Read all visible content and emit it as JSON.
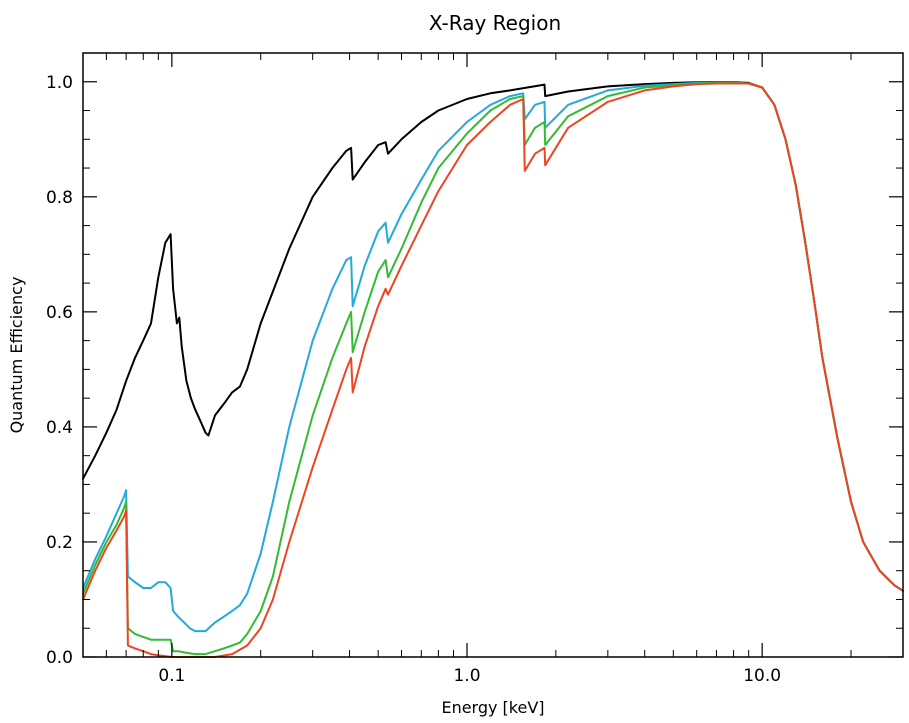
{
  "chart_data": {
    "type": "line",
    "title": "X-Ray Region",
    "xlabel": "Energy [keV]",
    "ylabel": "Quantum Efficiency",
    "xscale": "log",
    "xlim": [
      0.05,
      30
    ],
    "ylim": [
      0.0,
      1.05
    ],
    "grid": false,
    "legend": "none",
    "x_ticks": [
      {
        "value": 0.1,
        "label": "0.1"
      },
      {
        "value": 1.0,
        "label": "1.0"
      },
      {
        "value": 10.0,
        "label": "10.0"
      }
    ],
    "y_ticks": [
      {
        "value": 0.0,
        "label": "0.0"
      },
      {
        "value": 0.2,
        "label": "0.2"
      },
      {
        "value": 0.4,
        "label": "0.4"
      },
      {
        "value": 0.6,
        "label": "0.6"
      },
      {
        "value": 0.8,
        "label": "0.8"
      },
      {
        "value": 1.0,
        "label": "1.0"
      }
    ],
    "series": [
      {
        "color": "#000000",
        "x": [
          0.05,
          0.055,
          0.06,
          0.065,
          0.07,
          0.075,
          0.08,
          0.085,
          0.09,
          0.095,
          0.099,
          0.101,
          0.104,
          0.106,
          0.108,
          0.112,
          0.116,
          0.12,
          0.125,
          0.13,
          0.133,
          0.14,
          0.15,
          0.16,
          0.17,
          0.18,
          0.2,
          0.25,
          0.3,
          0.35,
          0.39,
          0.405,
          0.41,
          0.45,
          0.5,
          0.53,
          0.54,
          0.6,
          0.7,
          0.8,
          1.0,
          1.2,
          1.4,
          1.6,
          1.83,
          1.84,
          2.2,
          3.0,
          4.0,
          5.0,
          6.0,
          7.0,
          8.0,
          9.0,
          10.0,
          11.0,
          12.0,
          13.0,
          14.0,
          15.0,
          16.0,
          18.0,
          20.0,
          22.0,
          25.0,
          28.0,
          30.0
        ],
        "y": [
          0.31,
          0.35,
          0.39,
          0.43,
          0.48,
          0.52,
          0.55,
          0.58,
          0.66,
          0.72,
          0.735,
          0.64,
          0.58,
          0.59,
          0.54,
          0.48,
          0.45,
          0.43,
          0.41,
          0.39,
          0.385,
          0.42,
          0.44,
          0.46,
          0.47,
          0.5,
          0.58,
          0.71,
          0.8,
          0.85,
          0.88,
          0.885,
          0.83,
          0.86,
          0.89,
          0.895,
          0.875,
          0.9,
          0.93,
          0.95,
          0.97,
          0.98,
          0.985,
          0.99,
          0.995,
          0.975,
          0.983,
          0.992,
          0.996,
          0.998,
          0.999,
          0.999,
          0.999,
          0.998,
          0.99,
          0.96,
          0.9,
          0.82,
          0.72,
          0.62,
          0.52,
          0.38,
          0.27,
          0.2,
          0.15,
          0.125,
          0.115
        ]
      },
      {
        "color": "#22aadd",
        "x": [
          0.05,
          0.055,
          0.06,
          0.065,
          0.069,
          0.07,
          0.071,
          0.075,
          0.08,
          0.085,
          0.09,
          0.095,
          0.099,
          0.101,
          0.105,
          0.11,
          0.115,
          0.12,
          0.13,
          0.14,
          0.15,
          0.16,
          0.17,
          0.18,
          0.2,
          0.22,
          0.25,
          0.3,
          0.35,
          0.39,
          0.405,
          0.41,
          0.45,
          0.5,
          0.53,
          0.54,
          0.6,
          0.7,
          0.8,
          1.0,
          1.2,
          1.4,
          1.55,
          1.57,
          1.7,
          1.83,
          1.84,
          2.2,
          3.0,
          4.0,
          5.0,
          6.0,
          7.0,
          8.0,
          9.0,
          10.0,
          11.0,
          12.0,
          13.0,
          14.0,
          15.0,
          16.0,
          18.0,
          20.0,
          22.0,
          25.0,
          28.0,
          30.0
        ],
        "y": [
          0.12,
          0.17,
          0.21,
          0.25,
          0.28,
          0.29,
          0.14,
          0.13,
          0.12,
          0.12,
          0.13,
          0.13,
          0.12,
          0.08,
          0.07,
          0.06,
          0.05,
          0.045,
          0.045,
          0.06,
          0.07,
          0.08,
          0.09,
          0.11,
          0.18,
          0.27,
          0.4,
          0.55,
          0.64,
          0.69,
          0.695,
          0.61,
          0.68,
          0.74,
          0.755,
          0.72,
          0.77,
          0.83,
          0.88,
          0.93,
          0.96,
          0.975,
          0.98,
          0.935,
          0.96,
          0.965,
          0.92,
          0.96,
          0.985,
          0.993,
          0.996,
          0.998,
          0.998,
          0.998,
          0.997,
          0.99,
          0.96,
          0.9,
          0.82,
          0.72,
          0.62,
          0.52,
          0.38,
          0.27,
          0.2,
          0.15,
          0.125,
          0.115
        ]
      },
      {
        "color": "#33bb33",
        "x": [
          0.05,
          0.055,
          0.06,
          0.065,
          0.069,
          0.07,
          0.071,
          0.075,
          0.08,
          0.085,
          0.09,
          0.095,
          0.099,
          0.101,
          0.105,
          0.11,
          0.12,
          0.13,
          0.14,
          0.15,
          0.16,
          0.17,
          0.18,
          0.2,
          0.22,
          0.25,
          0.3,
          0.35,
          0.39,
          0.405,
          0.41,
          0.45,
          0.5,
          0.53,
          0.54,
          0.6,
          0.7,
          0.8,
          1.0,
          1.2,
          1.4,
          1.55,
          1.57,
          1.7,
          1.83,
          1.84,
          2.2,
          3.0,
          4.0,
          5.0,
          6.0,
          7.0,
          8.0,
          9.0,
          10.0,
          11.0,
          12.0,
          13.0,
          14.0,
          15.0,
          16.0,
          18.0,
          20.0,
          22.0,
          25.0,
          28.0,
          30.0
        ],
        "y": [
          0.11,
          0.16,
          0.2,
          0.23,
          0.26,
          0.27,
          0.05,
          0.04,
          0.035,
          0.03,
          0.03,
          0.03,
          0.03,
          0.01,
          0.01,
          0.008,
          0.005,
          0.005,
          0.01,
          0.015,
          0.02,
          0.025,
          0.04,
          0.08,
          0.14,
          0.27,
          0.42,
          0.52,
          0.58,
          0.6,
          0.53,
          0.6,
          0.67,
          0.69,
          0.66,
          0.71,
          0.79,
          0.85,
          0.91,
          0.95,
          0.97,
          0.975,
          0.89,
          0.92,
          0.93,
          0.89,
          0.94,
          0.975,
          0.99,
          0.994,
          0.997,
          0.998,
          0.998,
          0.997,
          0.99,
          0.96,
          0.9,
          0.82,
          0.72,
          0.62,
          0.52,
          0.38,
          0.27,
          0.2,
          0.15,
          0.125,
          0.115
        ]
      },
      {
        "color": "#ee4422",
        "x": [
          0.05,
          0.055,
          0.06,
          0.065,
          0.069,
          0.07,
          0.071,
          0.075,
          0.08,
          0.085,
          0.09,
          0.1,
          0.12,
          0.14,
          0.16,
          0.18,
          0.2,
          0.22,
          0.25,
          0.3,
          0.35,
          0.39,
          0.405,
          0.41,
          0.45,
          0.5,
          0.53,
          0.54,
          0.6,
          0.7,
          0.8,
          1.0,
          1.2,
          1.4,
          1.55,
          1.57,
          1.7,
          1.83,
          1.84,
          2.2,
          3.0,
          4.0,
          5.0,
          6.0,
          7.0,
          8.0,
          9.0,
          10.0,
          11.0,
          12.0,
          13.0,
          14.0,
          15.0,
          16.0,
          18.0,
          20.0,
          22.0,
          25.0,
          28.0,
          30.0
        ],
        "y": [
          0.1,
          0.15,
          0.19,
          0.22,
          0.245,
          0.255,
          0.02,
          0.015,
          0.01,
          0.005,
          0.003,
          0.0,
          0.0,
          0.0,
          0.005,
          0.02,
          0.05,
          0.1,
          0.2,
          0.33,
          0.43,
          0.5,
          0.52,
          0.46,
          0.54,
          0.61,
          0.64,
          0.63,
          0.68,
          0.75,
          0.81,
          0.89,
          0.93,
          0.96,
          0.97,
          0.845,
          0.875,
          0.885,
          0.855,
          0.92,
          0.965,
          0.985,
          0.992,
          0.996,
          0.997,
          0.997,
          0.997,
          0.99,
          0.96,
          0.9,
          0.82,
          0.72,
          0.62,
          0.52,
          0.38,
          0.27,
          0.2,
          0.15,
          0.125,
          0.115
        ]
      }
    ]
  }
}
